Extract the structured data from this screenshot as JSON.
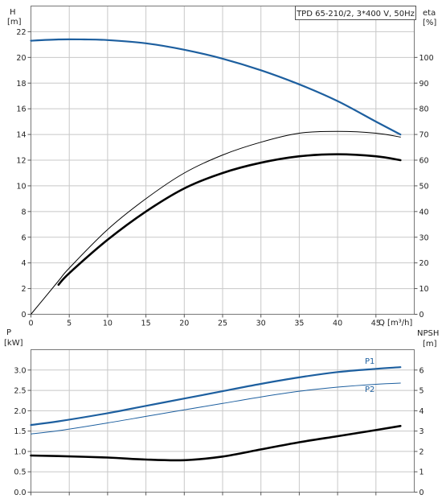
{
  "title": "TPD 65-210/2, 3*400 V, 50Hz",
  "colors": {
    "blue": "#1d5f9f",
    "black": "#000000",
    "grid": "#c8c8c8"
  },
  "chart_data": [
    {
      "type": "line",
      "labels": {
        "y_left": [
          "H",
          "[m]"
        ],
        "y_right": [
          "eta",
          "[%]"
        ],
        "x": "Q [m³/h]"
      },
      "xlim": [
        0,
        50
      ],
      "x_ticks": [
        0,
        5,
        10,
        15,
        20,
        25,
        30,
        35,
        40,
        45
      ],
      "ylim_left": [
        0,
        24
      ],
      "y_ticks_left": [
        0,
        2,
        4,
        6,
        8,
        10,
        12,
        14,
        16,
        18,
        20,
        22
      ],
      "ylim_right": [
        0,
        120
      ],
      "y_ticks_right": [
        0,
        10,
        20,
        30,
        40,
        50,
        60,
        70,
        80,
        90,
        100
      ],
      "grid": true,
      "series": [
        {
          "axis": "left",
          "color": "#1d5f9f",
          "width": 2.2,
          "x": [
            0,
            3.6,
            7,
            10,
            15,
            20,
            25,
            30,
            35,
            40,
            45,
            48.2
          ],
          "y": [
            21.3,
            21.4,
            21.4,
            21.35,
            21.1,
            20.6,
            19.9,
            19.0,
            17.9,
            16.6,
            15.0,
            14.0
          ]
        },
        {
          "axis": "right",
          "color": "#000000",
          "width": 1.0,
          "x": [
            0,
            3.6,
            5,
            10,
            15,
            20,
            25,
            30,
            35,
            40,
            45,
            48.2
          ],
          "y": [
            0,
            13,
            18,
            33,
            45,
            55,
            62,
            67,
            70.5,
            71.2,
            70.5,
            69
          ]
        },
        {
          "axis": "right",
          "color": "#000000",
          "width": 2.6,
          "x": [
            3.6,
            5,
            10,
            15,
            20,
            25,
            30,
            35,
            40,
            45,
            48.2
          ],
          "y": [
            11.5,
            16,
            29,
            40,
            49,
            55,
            59,
            61.5,
            62.3,
            61.5,
            60
          ]
        }
      ]
    },
    {
      "type": "line",
      "labels": {
        "y_left": [
          "P",
          "[kW]"
        ],
        "y_right": [
          "NPSH",
          "[m]"
        ]
      },
      "xlim": [
        0,
        50
      ],
      "x_ticks": [
        0,
        5,
        10,
        15,
        20,
        25,
        30,
        35,
        40,
        45
      ],
      "ylim_left": [
        0,
        3.5
      ],
      "y_ticks_left": [
        "0.0",
        "0.5",
        "1.0",
        "1.5",
        "2.0",
        "2.5",
        "3.0"
      ],
      "ylim_right": [
        0,
        7
      ],
      "y_ticks_right": [
        0,
        1,
        2,
        3,
        4,
        5,
        6
      ],
      "grid": true,
      "series": [
        {
          "name": "P1",
          "axis": "left",
          "color": "#1d5f9f",
          "width": 2.2,
          "x": [
            0,
            3.6,
            10,
            15,
            20,
            25,
            30,
            35,
            40,
            45,
            48.2
          ],
          "y": [
            1.65,
            1.74,
            1.94,
            2.12,
            2.3,
            2.48,
            2.66,
            2.82,
            2.95,
            3.03,
            3.07
          ]
        },
        {
          "name": "P2",
          "axis": "left",
          "color": "#1d5f9f",
          "width": 1.0,
          "x": [
            0,
            3.6,
            10,
            15,
            20,
            25,
            30,
            35,
            40,
            45,
            48.2
          ],
          "y": [
            1.43,
            1.51,
            1.7,
            1.86,
            2.02,
            2.18,
            2.34,
            2.48,
            2.58,
            2.65,
            2.68
          ]
        },
        {
          "axis": "right",
          "color": "#000000",
          "width": 2.6,
          "x": [
            0,
            3.6,
            10,
            15,
            20,
            25,
            30,
            35,
            40,
            45,
            48.2
          ],
          "y": [
            1.8,
            1.77,
            1.7,
            1.6,
            1.57,
            1.75,
            2.1,
            2.45,
            2.75,
            3.05,
            3.25
          ]
        }
      ]
    }
  ]
}
